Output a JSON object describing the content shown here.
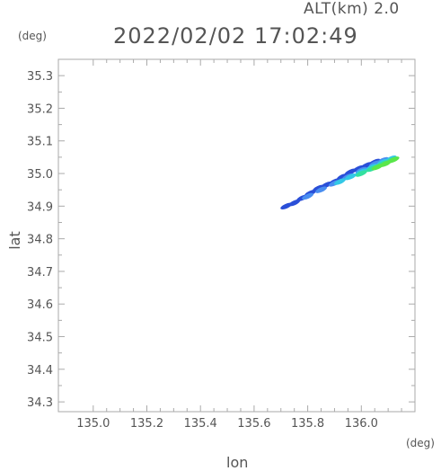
{
  "header": {
    "altitude_label": "ALT(km) 2.0",
    "timestamp": "2022/02/02 17:02:49"
  },
  "chart_data": {
    "type": "scatter",
    "title": "2022/02/02 17:02:49",
    "xlabel": "lon",
    "ylabel": "lat",
    "x_unit": "(deg)",
    "y_unit": "(deg)",
    "xlim": [
      134.87,
      136.2
    ],
    "ylim": [
      34.27,
      35.35
    ],
    "xticks": [
      135.0,
      135.2,
      135.4,
      135.6,
      135.8,
      136.0
    ],
    "xtick_labels": [
      "135.0",
      "135.2",
      "135.4",
      "135.6",
      "135.8",
      "136.0"
    ],
    "yticks": [
      34.3,
      34.4,
      34.5,
      34.6,
      34.7,
      34.8,
      34.9,
      35.0,
      35.1,
      35.2,
      35.3
    ],
    "ytick_labels": [
      "34.3",
      "34.4",
      "34.5",
      "34.6",
      "34.7",
      "34.8",
      "34.9",
      "35.0",
      "35.1",
      "35.2",
      "35.3"
    ],
    "grid": false,
    "series": [
      {
        "color": "#2a4fd8",
        "points": [
          [
            135.72,
            34.9
          ],
          [
            135.75,
            34.91
          ],
          [
            135.78,
            34.925
          ],
          [
            135.81,
            34.94
          ],
          [
            135.84,
            34.955
          ],
          [
            135.87,
            34.965
          ],
          [
            135.9,
            34.975
          ],
          [
            135.93,
            34.99
          ],
          [
            135.96,
            35.005
          ],
          [
            135.99,
            35.015
          ],
          [
            136.02,
            35.025
          ],
          [
            136.05,
            35.035
          ]
        ]
      },
      {
        "color": "#4a8ef0",
        "points": [
          [
            135.8,
            34.93
          ],
          [
            135.85,
            34.95
          ],
          [
            135.9,
            34.97
          ],
          [
            135.95,
            34.99
          ],
          [
            136.0,
            35.01
          ],
          [
            136.05,
            35.03
          ],
          [
            136.08,
            35.04
          ]
        ]
      },
      {
        "color": "#33c8e6",
        "points": [
          [
            135.92,
            34.975
          ],
          [
            135.96,
            34.99
          ],
          [
            136.0,
            35.005
          ],
          [
            136.04,
            35.02
          ],
          [
            136.08,
            35.035
          ],
          [
            136.11,
            35.045
          ]
        ]
      },
      {
        "color": "#33e0a0",
        "points": [
          [
            136.0,
            35.0
          ],
          [
            136.04,
            35.015
          ],
          [
            136.08,
            35.03
          ],
          [
            136.11,
            35.04
          ]
        ]
      },
      {
        "color": "#5ae64a",
        "points": [
          [
            136.06,
            35.02
          ],
          [
            136.09,
            35.03
          ],
          [
            136.12,
            35.042
          ]
        ]
      }
    ]
  }
}
